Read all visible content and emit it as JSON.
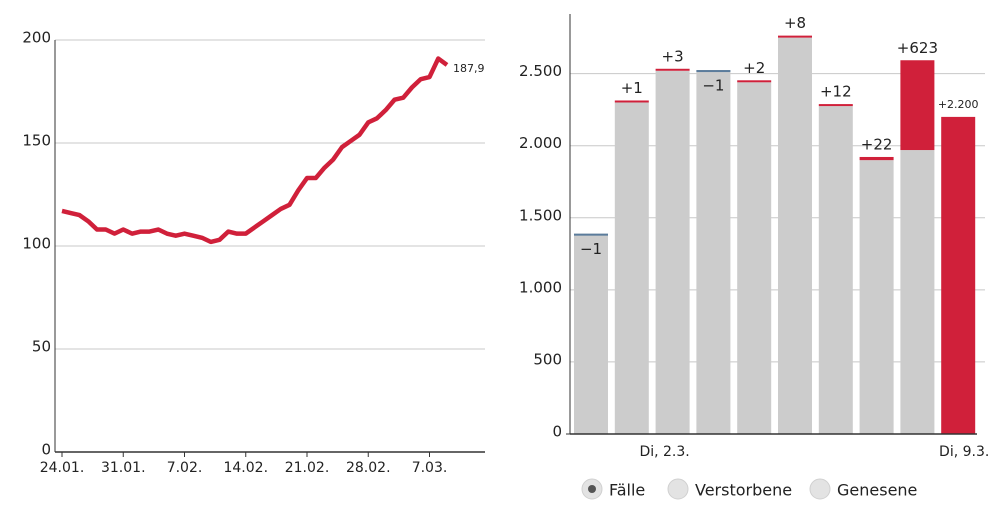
{
  "chart_data": [
    {
      "type": "line",
      "color": "#d0203a",
      "categories": [
        "24.01.",
        null,
        null,
        null,
        null,
        null,
        null,
        "31.01.",
        null,
        null,
        null,
        null,
        null,
        null,
        "7.02.",
        null,
        null,
        null,
        null,
        null,
        null,
        "14.02.",
        null,
        null,
        null,
        null,
        null,
        null,
        "21.02.",
        null,
        null,
        null,
        null,
        null,
        null,
        "28.02.",
        null,
        null,
        null,
        null,
        null,
        null,
        "7.03.",
        null,
        null
      ],
      "values": [
        117,
        116,
        115,
        112,
        108,
        108,
        106,
        108,
        106,
        107,
        107,
        108,
        106,
        105,
        106,
        105,
        104,
        102,
        103,
        107,
        106,
        106,
        109,
        112,
        115,
        118,
        120,
        127,
        133,
        133,
        138,
        142,
        148,
        151,
        154,
        160,
        162,
        166,
        171,
        172,
        177,
        181,
        182,
        191,
        187.9
      ],
      "value_labels": [
        null,
        null,
        null,
        null,
        null,
        null,
        null,
        null,
        null,
        null,
        null,
        null,
        null,
        null,
        null,
        null,
        null,
        null,
        null,
        null,
        null,
        null,
        null,
        null,
        null,
        null,
        null,
        null,
        null,
        null,
        null,
        null,
        null,
        null,
        null,
        null,
        null,
        null,
        null,
        null,
        null,
        null,
        null,
        null,
        "187,9"
      ],
      "ylim": [
        0,
        200
      ],
      "yticks": [
        0,
        50,
        100,
        150,
        200
      ],
      "grid": true
    },
    {
      "type": "stacked_bar",
      "categories": [
        null,
        null,
        "Di, 2.3.",
        null,
        null,
        null,
        null,
        null,
        null,
        "Di, 9.3."
      ],
      "series": [
        {
          "color": "#cccccc",
          "values": [
            1390,
            2300,
            2520,
            2525,
            2440,
            2750,
            2275,
            1900,
            1970,
            0
          ]
        },
        {
          "color": "#d0203a",
          "negative_color": "#5b7c9c",
          "values": [
            -1,
            1,
            3,
            -1,
            2,
            8,
            12,
            22,
            623,
            2200
          ],
          "value_labels": [
            "−1",
            "+1",
            "+3",
            "−1",
            "+2",
            "+8",
            "+12",
            "+22",
            "+623",
            "+2.200"
          ]
        }
      ],
      "ylim": [
        0,
        2900
      ],
      "yticks": [
        0,
        500,
        {
          "value": 1000,
          "label": "1.000"
        },
        {
          "value": 1500,
          "label": "1.500"
        },
        {
          "value": 2000,
          "label": "2.000"
        },
        {
          "value": 2500,
          "label": "2.500"
        }
      ],
      "grid": true,
      "legend": [
        {
          "name": "Fälle",
          "selected": true
        },
        {
          "name": "Verstorbene",
          "selected": false
        },
        {
          "name": "Genesene",
          "selected": false
        }
      ]
    }
  ]
}
